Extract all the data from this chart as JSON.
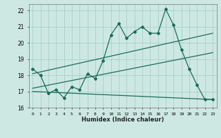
{
  "title": "",
  "xlabel": "Humidex (Indice chaleur)",
  "ylabel": "",
  "bg_color": "#cde8e2",
  "grid_color": "#aacec8",
  "line_color": "#1a6b5a",
  "xlim": [
    -0.5,
    23.5
  ],
  "ylim": [
    16.0,
    22.4
  ],
  "yticks": [
    16,
    17,
    18,
    19,
    20,
    21,
    22
  ],
  "xticks": [
    0,
    1,
    2,
    3,
    4,
    5,
    6,
    7,
    8,
    9,
    10,
    11,
    12,
    13,
    14,
    15,
    16,
    17,
    18,
    19,
    20,
    21,
    22,
    23
  ],
  "series1_x": [
    0,
    1,
    2,
    3,
    4,
    5,
    6,
    7,
    8,
    9,
    10,
    11,
    12,
    13,
    14,
    15,
    16,
    17,
    18,
    19,
    20,
    21,
    22,
    23
  ],
  "series1_y": [
    18.4,
    18.0,
    16.9,
    17.1,
    16.6,
    17.3,
    17.1,
    18.1,
    17.8,
    18.9,
    20.5,
    21.2,
    20.3,
    20.7,
    21.0,
    20.6,
    20.6,
    22.1,
    21.1,
    19.6,
    18.4,
    17.4,
    16.5,
    16.5
  ],
  "trend1_x": [
    0,
    23
  ],
  "trend1_y": [
    18.1,
    20.6
  ],
  "trend2_x": [
    0,
    23
  ],
  "trend2_y": [
    17.2,
    19.4
  ],
  "trend3_x": [
    0,
    23
  ],
  "trend3_y": [
    17.0,
    16.5
  ]
}
